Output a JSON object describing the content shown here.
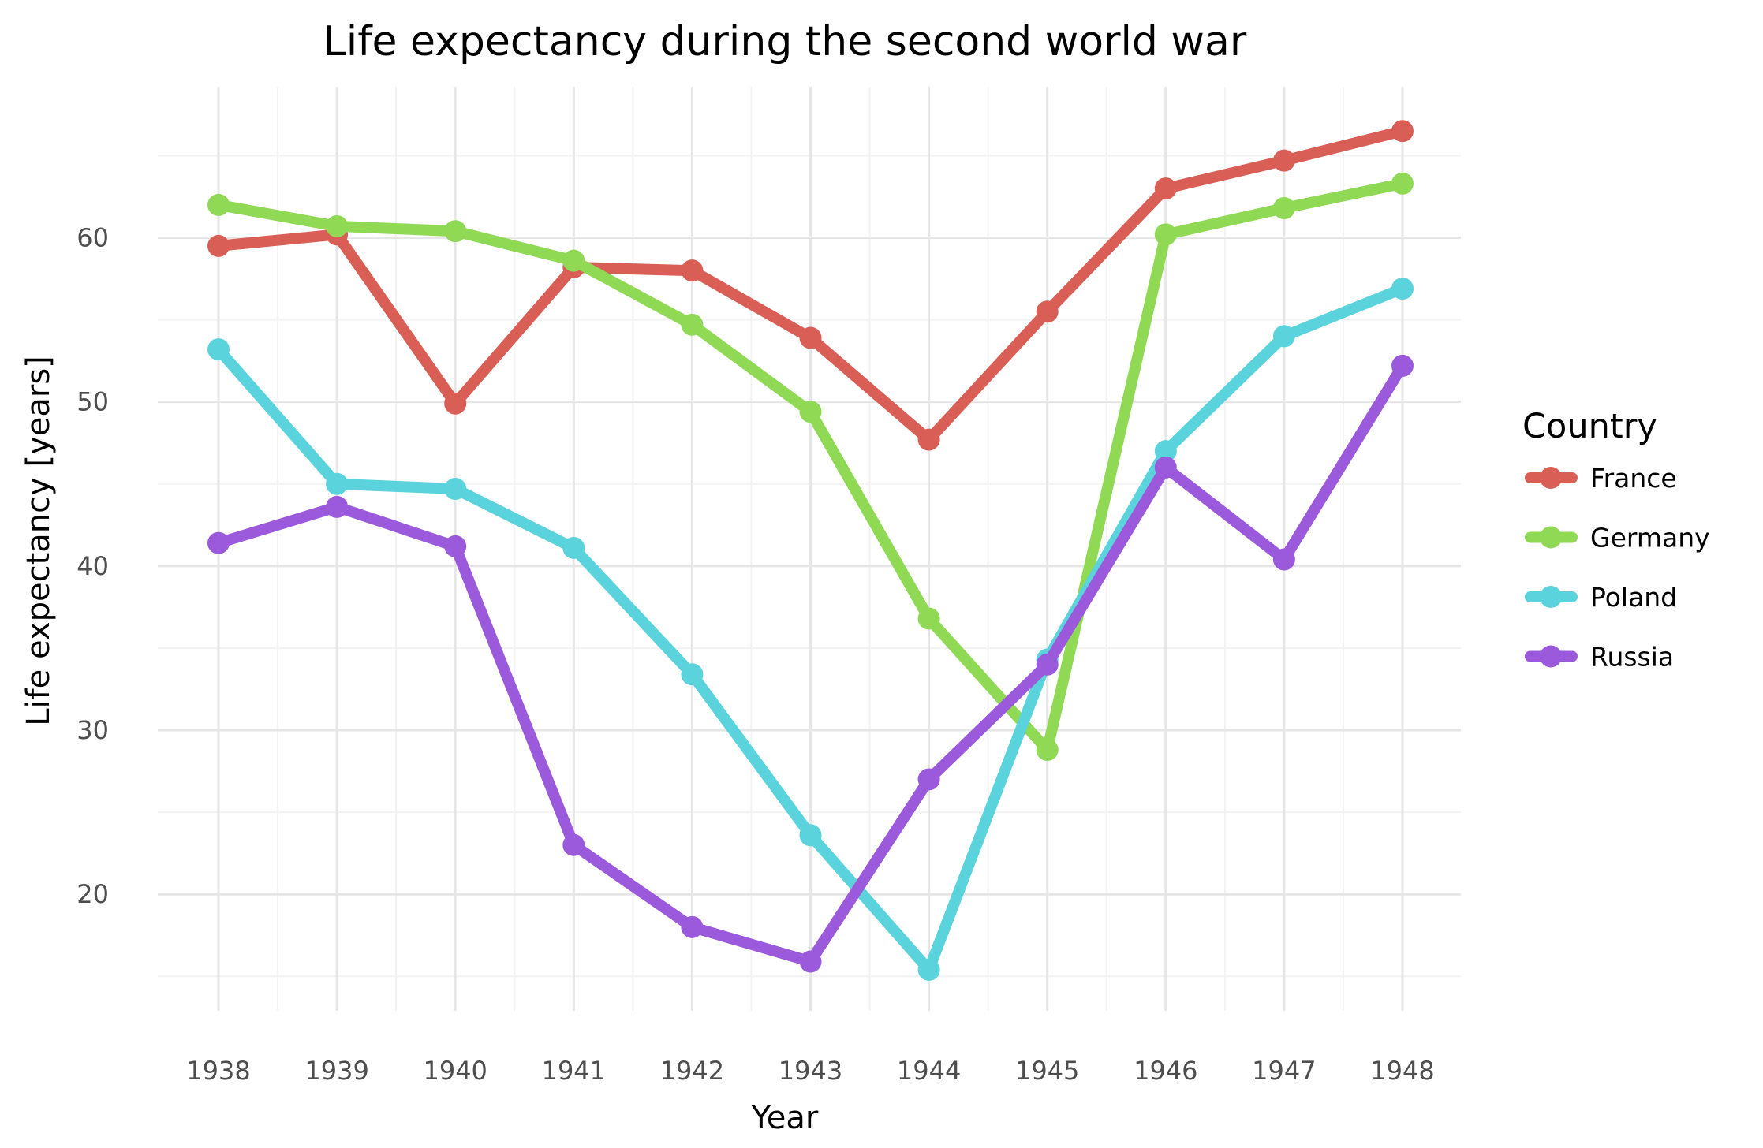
{
  "chart_data": {
    "type": "line",
    "title": "Life expectancy during the second world war",
    "xlabel": "Year",
    "ylabel": "Life expectancy [years]",
    "x": [
      "1938",
      "1939",
      "1940",
      "1941",
      "1942",
      "1943",
      "1944",
      "1945",
      "1946",
      "1947",
      "1948"
    ],
    "ylim": [
      12.9,
      69.2
    ],
    "y_ticks": [
      "20",
      "30",
      "40",
      "50",
      "60"
    ],
    "grid": true,
    "legend": {
      "title": "Country",
      "placement": "right"
    },
    "series": [
      {
        "name": "France",
        "color": "#d95f56",
        "values": [
          59.5,
          60.2,
          49.9,
          58.2,
          58.0,
          53.9,
          47.7,
          55.5,
          63.0,
          64.7,
          66.5
        ]
      },
      {
        "name": "Germany",
        "color": "#8fd955",
        "values": [
          62.0,
          60.7,
          60.4,
          58.6,
          54.7,
          49.4,
          36.8,
          28.8,
          60.2,
          61.8,
          63.3
        ]
      },
      {
        "name": "Poland",
        "color": "#5ad3dc",
        "values": [
          53.2,
          45.0,
          44.7,
          41.1,
          33.4,
          23.6,
          15.4,
          34.3,
          47.0,
          54.0,
          56.9
        ]
      },
      {
        "name": "Russia",
        "color": "#9b59db",
        "values": [
          41.4,
          43.6,
          41.2,
          23.0,
          18.0,
          15.9,
          27.0,
          34.0,
          46.0,
          40.4,
          52.2
        ]
      }
    ]
  }
}
